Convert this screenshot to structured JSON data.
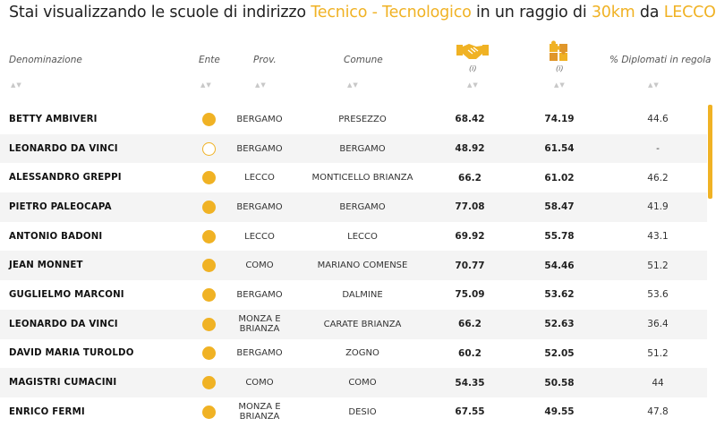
{
  "title": {
    "prefix": "Stai visualizzando le scuole di indirizzo ",
    "indirizzo": "Tecnico - Tecnologico",
    "middle": " in un raggio di ",
    "raggio": "30km",
    "connector": " da ",
    "citta": "LECCO"
  },
  "columns": {
    "denominazione": "Denominazione",
    "ente": "Ente",
    "prov": "Prov.",
    "comune": "Comune",
    "icon1_info": "(i)",
    "icon2_info": "(i)",
    "diplomati": "% Diplomati in regola",
    "sort_glyph": "▲▼"
  },
  "colors": {
    "accent": "#f0b224",
    "row_alt": "#f4f4f4"
  },
  "icons": {
    "col5": "handshake-icon",
    "col6": "puzzle-icon"
  },
  "rows": [
    {
      "name": "BETTY AMBIVERI",
      "ente": "filled",
      "prov": "BERGAMO",
      "comune": "PRESEZZO",
      "v1": "68.42",
      "v2": "74.19",
      "dip": "44.6"
    },
    {
      "name": "LEONARDO DA VINCI",
      "ente": "empty",
      "prov": "BERGAMO",
      "comune": "BERGAMO",
      "v1": "48.92",
      "v2": "61.54",
      "dip": "-"
    },
    {
      "name": "ALESSANDRO GREPPI",
      "ente": "filled",
      "prov": "LECCO",
      "comune": "MONTICELLO BRIANZA",
      "v1": "66.2",
      "v2": "61.02",
      "dip": "46.2"
    },
    {
      "name": "PIETRO PALEOCAPA",
      "ente": "filled",
      "prov": "BERGAMO",
      "comune": "BERGAMO",
      "v1": "77.08",
      "v2": "58.47",
      "dip": "41.9"
    },
    {
      "name": "ANTONIO BADONI",
      "ente": "filled",
      "prov": "LECCO",
      "comune": "LECCO",
      "v1": "69.92",
      "v2": "55.78",
      "dip": "43.1"
    },
    {
      "name": "JEAN MONNET",
      "ente": "filled",
      "prov": "COMO",
      "comune": "MARIANO COMENSE",
      "v1": "70.77",
      "v2": "54.46",
      "dip": "51.2"
    },
    {
      "name": "GUGLIELMO MARCONI",
      "ente": "filled",
      "prov": "BERGAMO",
      "comune": "DALMINE",
      "v1": "75.09",
      "v2": "53.62",
      "dip": "53.6"
    },
    {
      "name": "LEONARDO DA VINCI",
      "ente": "filled",
      "prov": "MONZA E BRIANZA",
      "comune": "CARATE BRIANZA",
      "v1": "66.2",
      "v2": "52.63",
      "dip": "36.4"
    },
    {
      "name": "DAVID MARIA TUROLDO",
      "ente": "filled",
      "prov": "BERGAMO",
      "comune": "ZOGNO",
      "v1": "60.2",
      "v2": "52.05",
      "dip": "51.2"
    },
    {
      "name": "MAGISTRI CUMACINI",
      "ente": "filled",
      "prov": "COMO",
      "comune": "COMO",
      "v1": "54.35",
      "v2": "50.58",
      "dip": "44"
    },
    {
      "name": "ENRICO FERMI",
      "ente": "filled",
      "prov": "MONZA E BRIANZA",
      "comune": "DESIO",
      "v1": "67.55",
      "v2": "49.55",
      "dip": "47.8"
    }
  ]
}
